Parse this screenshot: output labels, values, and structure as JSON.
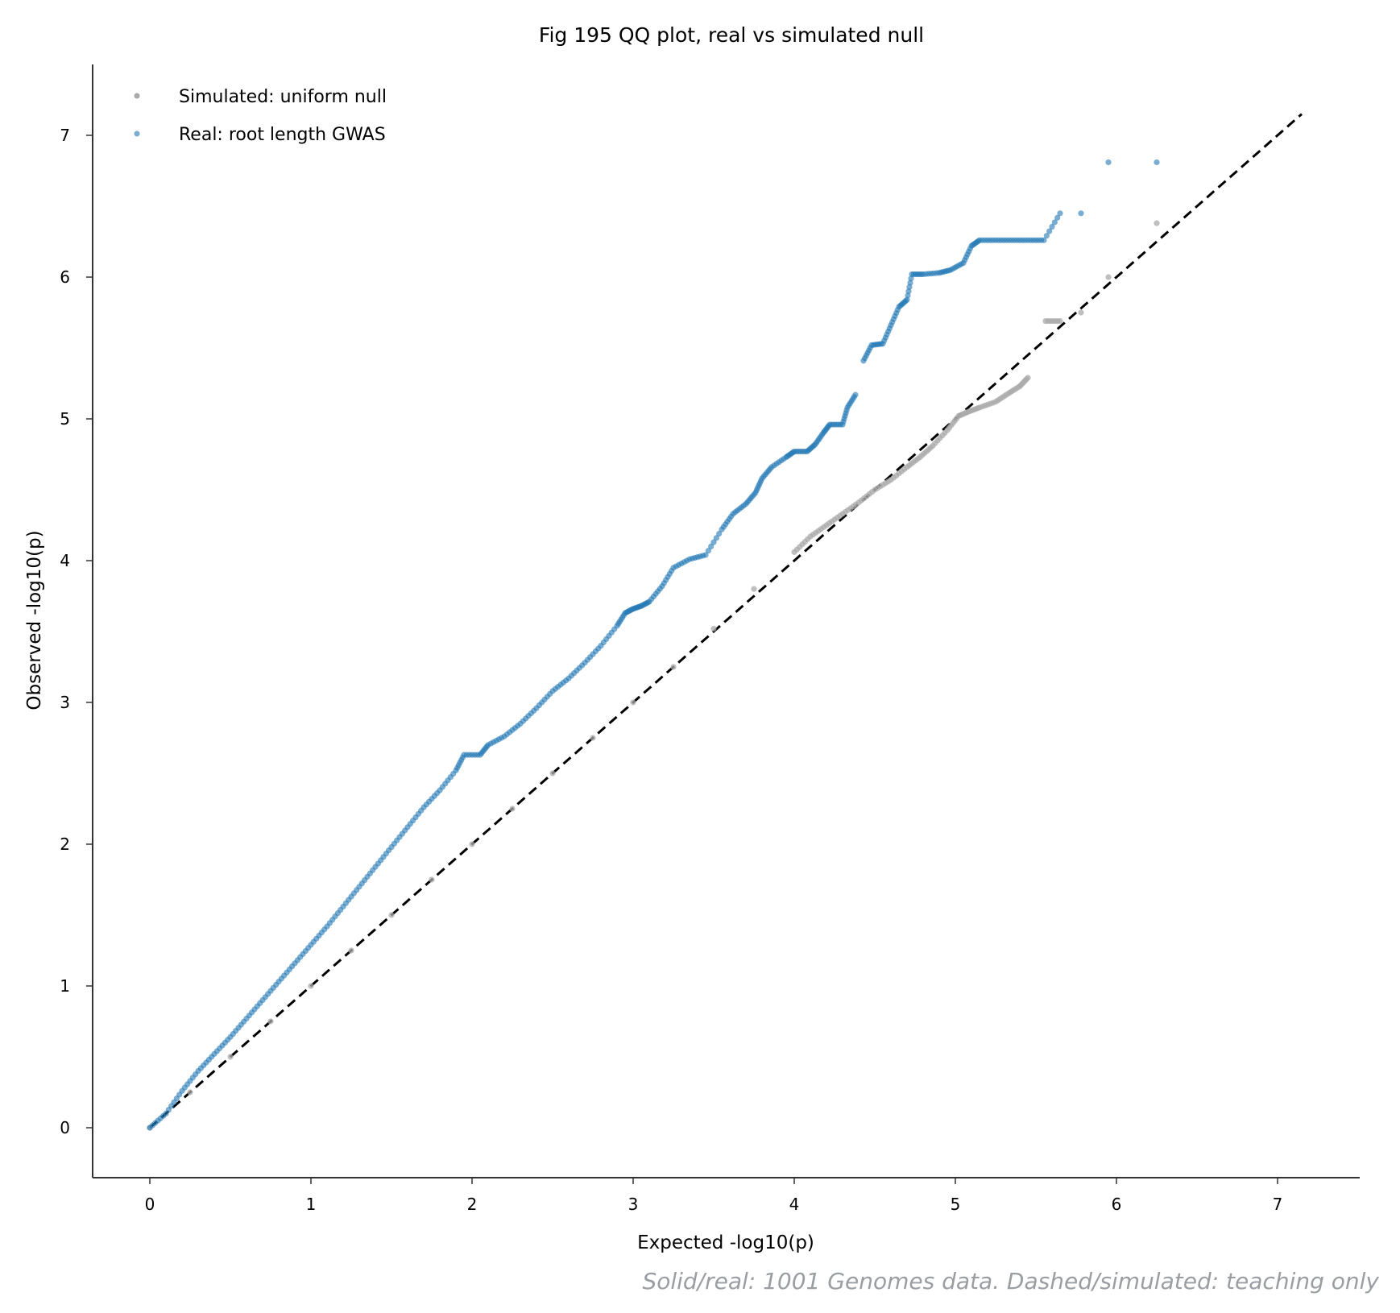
{
  "chart_data": {
    "type": "scatter",
    "title": "Fig 195  QQ plot, real vs simulated null",
    "xlabel": "Expected -log10(p)",
    "ylabel": "Observed -log10(p)",
    "xlim": [
      -0.35,
      7.5
    ],
    "ylim": [
      -0.35,
      7.5
    ],
    "xticks": [
      "0",
      "1",
      "2",
      "3",
      "4",
      "5",
      "6",
      "7"
    ],
    "yticks": [
      "0",
      "1",
      "2",
      "3",
      "4",
      "5",
      "6",
      "7"
    ],
    "grid": false,
    "legend_position": "top-left",
    "reference_line": {
      "style": "dashed",
      "color": "#000000",
      "from": [
        0,
        0
      ],
      "to": [
        7.15,
        7.15
      ]
    },
    "series": [
      {
        "name": "Simulated: uniform null",
        "color": "#a9a9a9",
        "points": [
          [
            0.0,
            0.0
          ],
          [
            0.25,
            0.25
          ],
          [
            0.5,
            0.5
          ],
          [
            0.75,
            0.75
          ],
          [
            1.0,
            1.0
          ],
          [
            1.25,
            1.25
          ],
          [
            1.5,
            1.5
          ],
          [
            1.75,
            1.75
          ],
          [
            2.0,
            2.0
          ],
          [
            2.25,
            2.25
          ],
          [
            2.5,
            2.5
          ],
          [
            2.75,
            2.75
          ],
          [
            3.0,
            3.0
          ],
          [
            3.25,
            3.25
          ],
          [
            3.5,
            3.52
          ],
          [
            3.75,
            3.8
          ],
          [
            4.0,
            4.06
          ],
          [
            4.1,
            4.17
          ],
          [
            4.2,
            4.25
          ],
          [
            4.3,
            4.33
          ],
          [
            4.4,
            4.41
          ],
          [
            4.5,
            4.5
          ],
          [
            4.6,
            4.57
          ],
          [
            4.7,
            4.66
          ],
          [
            4.78,
            4.73
          ],
          [
            4.86,
            4.81
          ],
          [
            4.95,
            4.92
          ],
          [
            5.02,
            5.02
          ],
          [
            5.08,
            5.05
          ],
          [
            5.15,
            5.08
          ],
          [
            5.25,
            5.12
          ],
          [
            5.33,
            5.18
          ],
          [
            5.4,
            5.23
          ],
          [
            5.45,
            5.29
          ],
          [
            5.56,
            5.69
          ],
          [
            5.65,
            5.69
          ],
          [
            5.78,
            5.75
          ],
          [
            5.95,
            6.0
          ],
          [
            6.25,
            6.38
          ]
        ]
      },
      {
        "name": "Real: root length GWAS",
        "color": "#1f77b4",
        "points": [
          [
            0.0,
            0.0
          ],
          [
            0.1,
            0.1
          ],
          [
            0.2,
            0.26
          ],
          [
            0.3,
            0.4
          ],
          [
            0.4,
            0.52
          ],
          [
            0.5,
            0.64
          ],
          [
            0.6,
            0.77
          ],
          [
            0.7,
            0.9
          ],
          [
            0.8,
            1.03
          ],
          [
            0.9,
            1.16
          ],
          [
            1.0,
            1.29
          ],
          [
            1.1,
            1.42
          ],
          [
            1.2,
            1.56
          ],
          [
            1.3,
            1.7
          ],
          [
            1.4,
            1.84
          ],
          [
            1.5,
            1.98
          ],
          [
            1.6,
            2.12
          ],
          [
            1.7,
            2.26
          ],
          [
            1.8,
            2.38
          ],
          [
            1.9,
            2.52
          ],
          [
            1.95,
            2.63
          ],
          [
            2.05,
            2.63
          ],
          [
            2.1,
            2.7
          ],
          [
            2.2,
            2.76
          ],
          [
            2.3,
            2.85
          ],
          [
            2.4,
            2.96
          ],
          [
            2.5,
            3.08
          ],
          [
            2.6,
            3.17
          ],
          [
            2.7,
            3.28
          ],
          [
            2.8,
            3.4
          ],
          [
            2.9,
            3.54
          ],
          [
            2.95,
            3.63
          ],
          [
            3.0,
            3.66
          ],
          [
            3.05,
            3.68
          ],
          [
            3.1,
            3.71
          ],
          [
            3.18,
            3.82
          ],
          [
            3.25,
            3.95
          ],
          [
            3.35,
            4.01
          ],
          [
            3.45,
            4.04
          ],
          [
            3.55,
            4.22
          ],
          [
            3.62,
            4.33
          ],
          [
            3.7,
            4.4
          ],
          [
            3.76,
            4.48
          ],
          [
            3.8,
            4.58
          ],
          [
            3.86,
            4.66
          ],
          [
            3.95,
            4.73
          ],
          [
            4.0,
            4.77
          ],
          [
            4.08,
            4.77
          ],
          [
            4.13,
            4.82
          ],
          [
            4.18,
            4.9
          ],
          [
            4.22,
            4.96
          ],
          [
            4.3,
            4.96
          ],
          [
            4.33,
            5.08
          ],
          [
            4.38,
            5.17
          ],
          [
            4.43,
            5.41
          ],
          [
            4.48,
            5.52
          ],
          [
            4.55,
            5.53
          ],
          [
            4.6,
            5.66
          ],
          [
            4.65,
            5.79
          ],
          [
            4.7,
            5.84
          ],
          [
            4.73,
            6.02
          ],
          [
            4.8,
            6.02
          ],
          [
            4.9,
            6.03
          ],
          [
            4.97,
            6.05
          ],
          [
            5.05,
            6.1
          ],
          [
            5.1,
            6.22
          ],
          [
            5.15,
            6.26
          ],
          [
            5.25,
            6.26
          ],
          [
            5.35,
            6.26
          ],
          [
            5.45,
            6.26
          ],
          [
            5.55,
            6.26
          ],
          [
            5.65,
            6.45
          ],
          [
            5.78,
            6.45
          ],
          [
            5.95,
            6.81
          ],
          [
            6.25,
            6.81
          ]
        ]
      }
    ],
    "footnote": "Solid/real: 1001 Genomes data. Dashed/simulated: teaching only"
  }
}
